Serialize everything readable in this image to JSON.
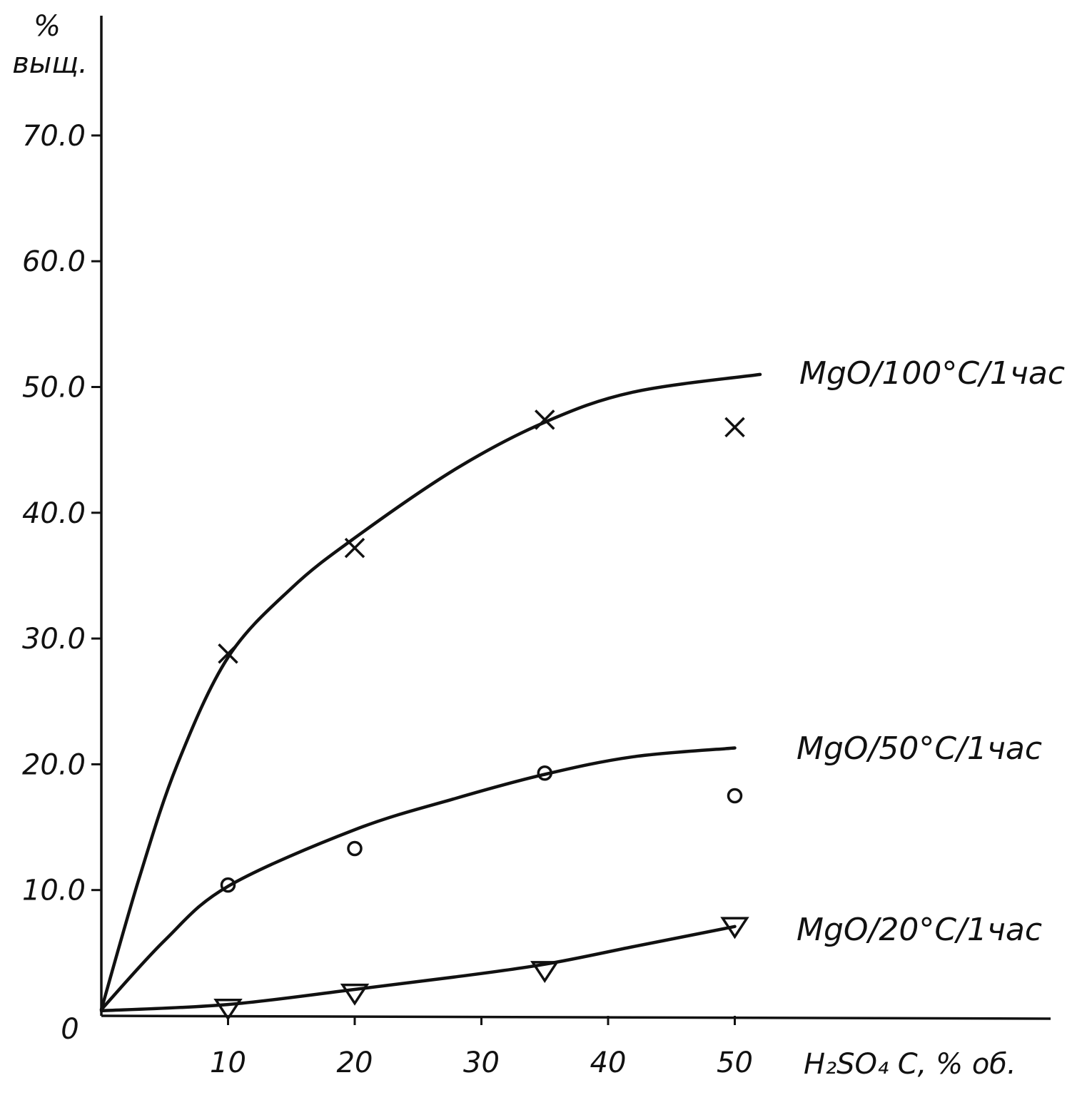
{
  "chart_data": {
    "type": "line",
    "title": "",
    "xlabel": "H₂SO₄ C, % об.",
    "ylabel": [
      "%",
      "выщ."
    ],
    "origin_label": "0",
    "xlim": [
      0,
      75
    ],
    "ylim": [
      0,
      78
    ],
    "x_ticks": [
      10,
      20,
      30,
      40,
      50
    ],
    "y_ticks": [
      10.0,
      20.0,
      30.0,
      40.0,
      50.0,
      60.0,
      70.0
    ],
    "y_tick_labels": [
      "10.0",
      "20.0",
      "30.0",
      "40.0",
      "50.0",
      "60.0",
      "70.0"
    ],
    "grid": false,
    "legend": "labels at curve ends",
    "series": [
      {
        "name": "MgO/100°C/1час",
        "marker": "x",
        "points": [
          {
            "x": 10,
            "y": 28.8
          },
          {
            "x": 20,
            "y": 37.2
          },
          {
            "x": 35,
            "y": 47.4
          },
          {
            "x": 50,
            "y": 46.8
          }
        ],
        "fit": [
          {
            "x": 0,
            "y": 0.5
          },
          {
            "x": 3,
            "y": 11
          },
          {
            "x": 6,
            "y": 20
          },
          {
            "x": 10,
            "y": 28.5
          },
          {
            "x": 15,
            "y": 34
          },
          {
            "x": 20,
            "y": 38
          },
          {
            "x": 28,
            "y": 43.5
          },
          {
            "x": 35,
            "y": 47.2
          },
          {
            "x": 42,
            "y": 49.6
          },
          {
            "x": 52,
            "y": 51
          }
        ]
      },
      {
        "name": "MgO/50°C/1час",
        "marker": "o",
        "points": [
          {
            "x": 10,
            "y": 10.4
          },
          {
            "x": 20,
            "y": 13.3
          },
          {
            "x": 35,
            "y": 19.3
          },
          {
            "x": 50,
            "y": 17.5
          }
        ],
        "fit": [
          {
            "x": 0,
            "y": 0.5
          },
          {
            "x": 5,
            "y": 6
          },
          {
            "x": 10,
            "y": 10.3
          },
          {
            "x": 20,
            "y": 14.8
          },
          {
            "x": 28,
            "y": 17.3
          },
          {
            "x": 35,
            "y": 19.2
          },
          {
            "x": 42,
            "y": 20.6
          },
          {
            "x": 50,
            "y": 21.3
          }
        ]
      },
      {
        "name": "MgO/20°C/1час",
        "marker": "triangle-down",
        "points": [
          {
            "x": 10,
            "y": 0.6
          },
          {
            "x": 20,
            "y": 1.8
          },
          {
            "x": 35,
            "y": 3.6
          },
          {
            "x": 50,
            "y": 7.1
          }
        ],
        "fit": [
          {
            "x": 0,
            "y": 0.4
          },
          {
            "x": 10,
            "y": 0.9
          },
          {
            "x": 20,
            "y": 2.1
          },
          {
            "x": 28,
            "y": 3.1
          },
          {
            "x": 35,
            "y": 4.1
          },
          {
            "x": 42,
            "y": 5.5
          },
          {
            "x": 50,
            "y": 7.1
          }
        ]
      }
    ]
  }
}
